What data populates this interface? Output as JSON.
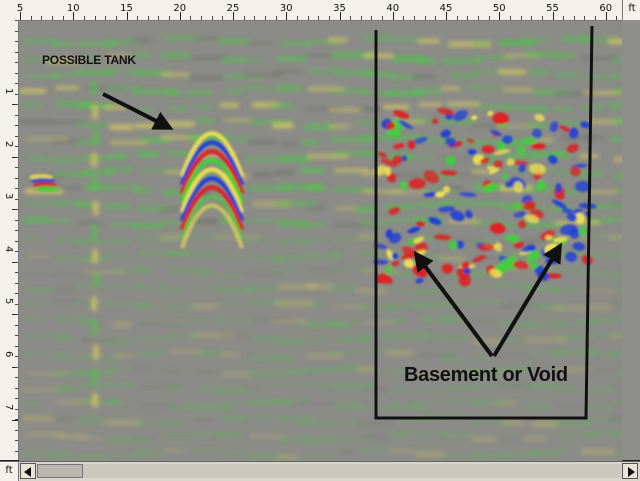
{
  "window": {
    "top_axis_unit": "ft",
    "left_axis_unit": "ft"
  },
  "ruler_top": {
    "ticks": [
      "5",
      "10",
      "15",
      "20",
      "25",
      "30",
      "35",
      "40",
      "45",
      "50",
      "55",
      "60"
    ]
  },
  "ruler_left": {
    "ticks": [
      "1",
      "2",
      "3",
      "4",
      "5",
      "6",
      "7"
    ]
  },
  "annotations": {
    "tank_label": "POSSIBLE TANK",
    "void_label": "Basement or Void"
  },
  "scrollbar": {
    "left_icon": "left-triangle-icon",
    "right_icon": "right-triangle-icon",
    "position": 0
  },
  "colors": {
    "background_gray": "#8b8b87",
    "signal_green": "#3fd23a",
    "signal_yellow": "#f0e050",
    "signal_red": "#e02020",
    "signal_blue": "#1f3fd8",
    "annotation_black": "#111111"
  }
}
